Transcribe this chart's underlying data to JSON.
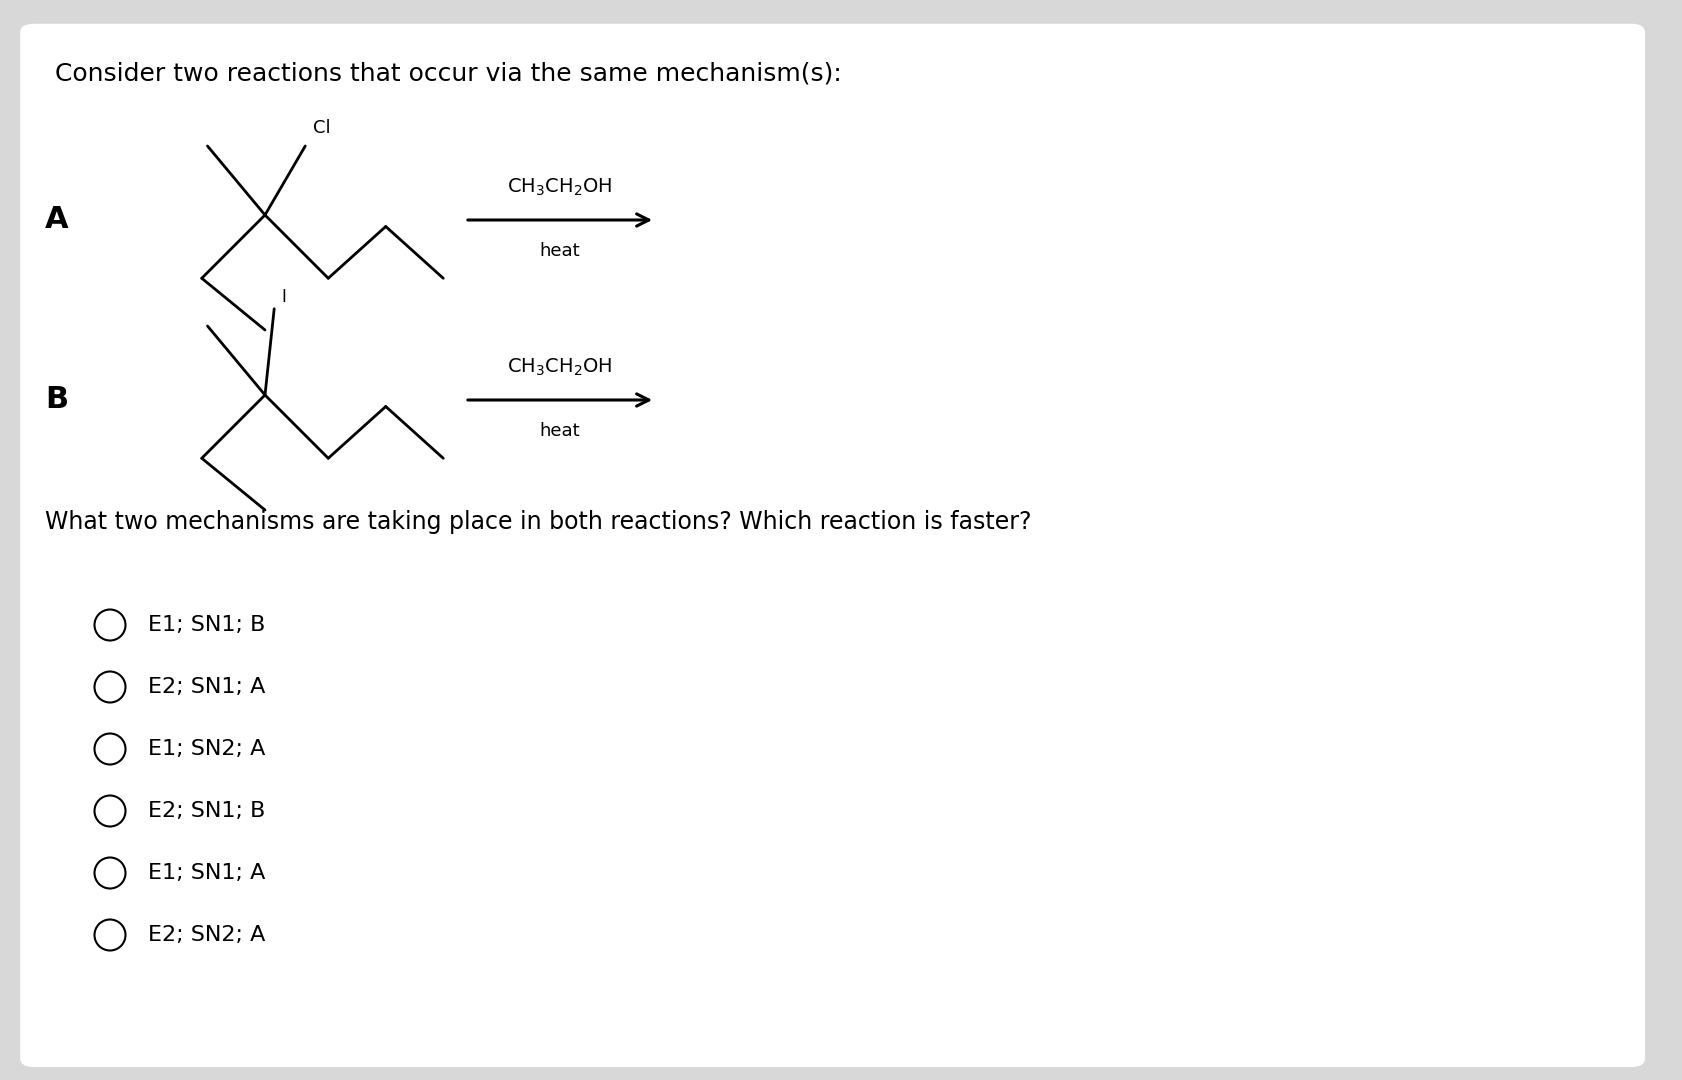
{
  "background_color": "#d8d8d8",
  "card_color": "#ffffff",
  "title": "Consider two reactions that occur via the same mechanism(s):",
  "title_fontsize": 18,
  "question": "What two mechanisms are taking place in both reactions? Which reaction is faster?",
  "question_fontsize": 17,
  "options": [
    "E1; SN1; B",
    "E2; SN1; A",
    "E1; SN2; A",
    "E2; SN1; B",
    "E1; SN1; A",
    "E2; SN2; A"
  ],
  "options_fontsize": 16,
  "reaction_A_label": "A",
  "reaction_B_label": "B",
  "reagent_A": "CH$_3$CH$_2$OH",
  "reagent_B": "CH$_3$CH$_2$OH",
  "condition": "heat",
  "Cl_label": "Cl",
  "I_label": "I"
}
